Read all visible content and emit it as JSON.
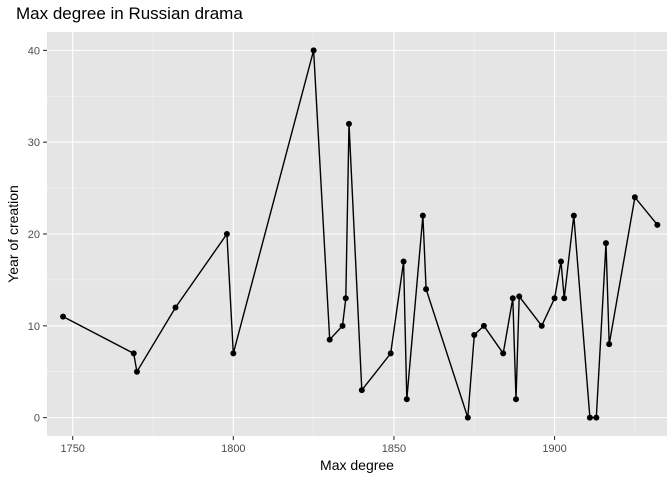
{
  "chart_data": {
    "type": "line",
    "title": "Max degree in Russian drama",
    "xlabel": "Max degree",
    "ylabel": "Year of creation",
    "xlim": [
      1742,
      1935
    ],
    "ylim": [
      -2,
      42
    ],
    "x_ticks": [
      1750,
      1800,
      1850,
      1900
    ],
    "y_ticks": [
      0,
      10,
      20,
      30,
      40
    ],
    "grid": true,
    "legend": "none",
    "colors": {
      "panel": "#e5e5e5",
      "grid_major": "#ffffff",
      "line": "#000000",
      "point": "#000000"
    },
    "series": [
      {
        "points": [
          [
            1747,
            11
          ],
          [
            1769,
            7
          ],
          [
            1770,
            5
          ],
          [
            1782,
            12
          ],
          [
            1798,
            20
          ],
          [
            1800,
            7
          ],
          [
            1825,
            40
          ],
          [
            1830,
            8.5
          ],
          [
            1834,
            10
          ],
          [
            1835,
            13
          ],
          [
            1836,
            32
          ],
          [
            1840,
            3
          ],
          [
            1849,
            7
          ],
          [
            1853,
            17
          ],
          [
            1854,
            2
          ],
          [
            1859,
            22
          ],
          [
            1860,
            14
          ],
          [
            1873,
            0
          ],
          [
            1875,
            9
          ],
          [
            1878,
            10
          ],
          [
            1884,
            7
          ],
          [
            1887,
            13
          ],
          [
            1888,
            2
          ],
          [
            1889,
            13.2
          ],
          [
            1896,
            10
          ],
          [
            1900,
            13
          ],
          [
            1902,
            17
          ],
          [
            1903,
            13
          ],
          [
            1906,
            22
          ],
          [
            1911,
            0
          ],
          [
            1913,
            0
          ],
          [
            1916,
            19
          ],
          [
            1917,
            8
          ],
          [
            1925,
            24
          ],
          [
            1932,
            21
          ]
        ]
      }
    ]
  }
}
